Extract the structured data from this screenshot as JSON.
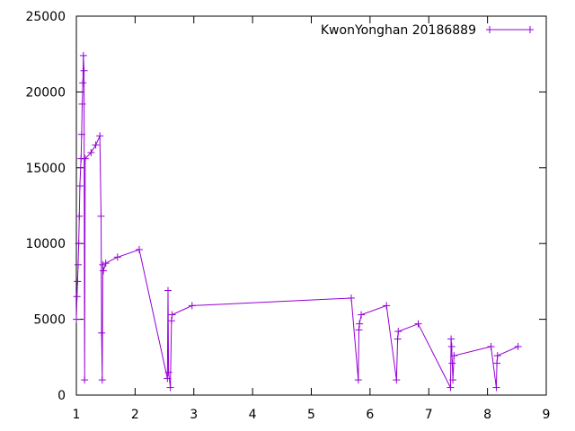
{
  "chart_data": {
    "type": "line",
    "title": "",
    "xlabel": "",
    "ylabel": "",
    "xlim": [
      1,
      9
    ],
    "ylim": [
      0,
      25000
    ],
    "xticks": [
      "1",
      "2",
      "3",
      "4",
      "5",
      "6",
      "7",
      "8",
      "9"
    ],
    "yticks": [
      "0",
      "5000",
      "10000",
      "15000",
      "20000",
      "25000"
    ],
    "grid": false,
    "legend_position": "top-right",
    "series": [
      {
        "name": "KwonYonghan 20186889",
        "color": "#9400d3",
        "marker": "plus",
        "points": [
          [
            1.0,
            5000
          ],
          [
            1.01,
            6500
          ],
          [
            1.02,
            7500
          ],
          [
            1.03,
            8600
          ],
          [
            1.04,
            10000
          ],
          [
            1.05,
            11800
          ],
          [
            1.06,
            13800
          ],
          [
            1.08,
            15600
          ],
          [
            1.09,
            17200
          ],
          [
            1.1,
            19200
          ],
          [
            1.11,
            20600
          ],
          [
            1.12,
            22400
          ],
          [
            1.13,
            21400
          ],
          [
            1.14,
            1000
          ],
          [
            1.15,
            15600
          ],
          [
            1.25,
            16000
          ],
          [
            1.33,
            16500
          ],
          [
            1.4,
            17100
          ],
          [
            1.42,
            11800
          ],
          [
            1.43,
            4100
          ],
          [
            1.44,
            1000
          ],
          [
            1.45,
            8600
          ],
          [
            1.46,
            8200
          ],
          [
            1.5,
            8700
          ],
          [
            1.7,
            9100
          ],
          [
            2.07,
            9600
          ],
          [
            2.55,
            1100
          ],
          [
            2.56,
            6900
          ],
          [
            2.57,
            1500
          ],
          [
            2.6,
            500
          ],
          [
            2.62,
            4900
          ],
          [
            2.63,
            5300
          ],
          [
            2.97,
            5900
          ],
          [
            5.68,
            6400
          ],
          [
            5.8,
            1000
          ],
          [
            5.81,
            4300
          ],
          [
            5.82,
            4700
          ],
          [
            5.85,
            5300
          ],
          [
            6.28,
            5900
          ],
          [
            6.45,
            1000
          ],
          [
            6.47,
            3700
          ],
          [
            6.48,
            4200
          ],
          [
            6.82,
            4700
          ],
          [
            7.37,
            500
          ],
          [
            7.38,
            3700
          ],
          [
            7.39,
            3200
          ],
          [
            7.4,
            2100
          ],
          [
            7.41,
            1000
          ],
          [
            7.43,
            2600
          ],
          [
            8.06,
            3200
          ],
          [
            8.15,
            500
          ],
          [
            8.16,
            2100
          ],
          [
            8.17,
            2600
          ],
          [
            8.52,
            3200
          ]
        ]
      }
    ]
  }
}
